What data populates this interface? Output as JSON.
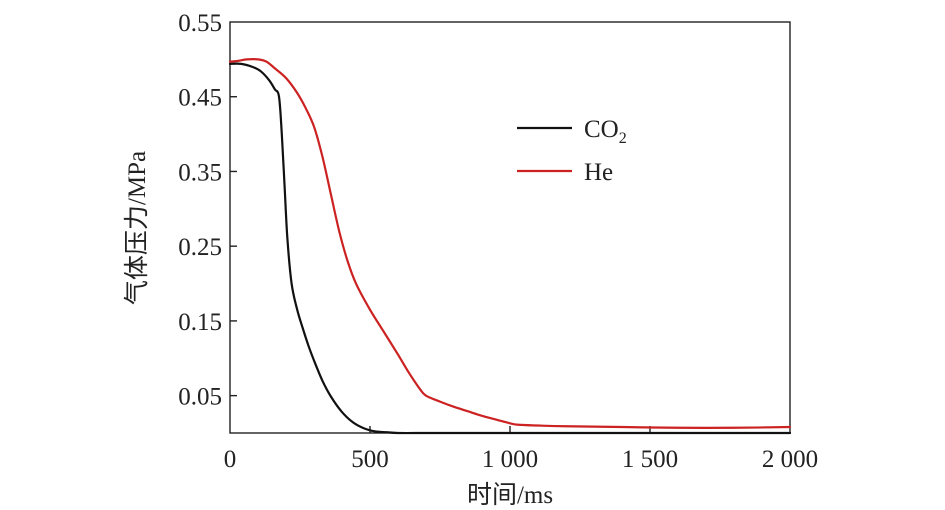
{
  "chart_data": {
    "type": "line",
    "xlabel": "时间/ms",
    "ylabel": "气体压力/MPa",
    "xlim": [
      0,
      2000
    ],
    "ylim": [
      0,
      0.55
    ],
    "x_ticks": [
      0,
      500,
      1000,
      1500,
      2000
    ],
    "x_tick_labels": [
      "0",
      "500",
      "1 000",
      "1 500",
      "2 000"
    ],
    "y_ticks": [
      0.05,
      0.15,
      0.25,
      0.35,
      0.45,
      0.55
    ],
    "y_tick_labels": [
      "0.05",
      "0.15",
      "0.25",
      "0.35",
      "0.45",
      "0.55"
    ],
    "grid": false,
    "legend_position": "top-right",
    "series": [
      {
        "name": "CO₂",
        "name_main": "CO",
        "name_sub": "2",
        "color": "#111111",
        "x": [
          0,
          40,
          80,
          110,
          140,
          160,
          175,
          185,
          195,
          205,
          220,
          240,
          260,
          280,
          300,
          330,
          360,
          400,
          440,
          480,
          520,
          560,
          600,
          700,
          800,
          1000,
          1500,
          2000
        ],
        "y": [
          0.494,
          0.494,
          0.49,
          0.484,
          0.472,
          0.46,
          0.45,
          0.4,
          0.33,
          0.26,
          0.2,
          0.165,
          0.14,
          0.117,
          0.097,
          0.07,
          0.049,
          0.028,
          0.014,
          0.006,
          0.002,
          0.001,
          0.0,
          0.0,
          0.0,
          0.0,
          0.0,
          0.0
        ]
      },
      {
        "name": "He",
        "name_main": "He",
        "name_sub": "",
        "color": "#cc2222",
        "x": [
          0,
          30,
          60,
          100,
          130,
          160,
          200,
          240,
          270,
          300,
          330,
          360,
          390,
          420,
          450,
          500,
          550,
          600,
          640,
          680,
          700,
          750,
          800,
          850,
          900,
          950,
          1000,
          1030,
          1100,
          1200,
          1400,
          1600,
          1800,
          2000
        ],
        "y": [
          0.497,
          0.498,
          0.5,
          0.5,
          0.497,
          0.488,
          0.475,
          0.455,
          0.435,
          0.41,
          0.37,
          0.32,
          0.27,
          0.23,
          0.2,
          0.165,
          0.135,
          0.105,
          0.08,
          0.058,
          0.05,
          0.042,
          0.035,
          0.029,
          0.023,
          0.018,
          0.013,
          0.011,
          0.01,
          0.009,
          0.008,
          0.007,
          0.007,
          0.008
        ]
      }
    ]
  }
}
